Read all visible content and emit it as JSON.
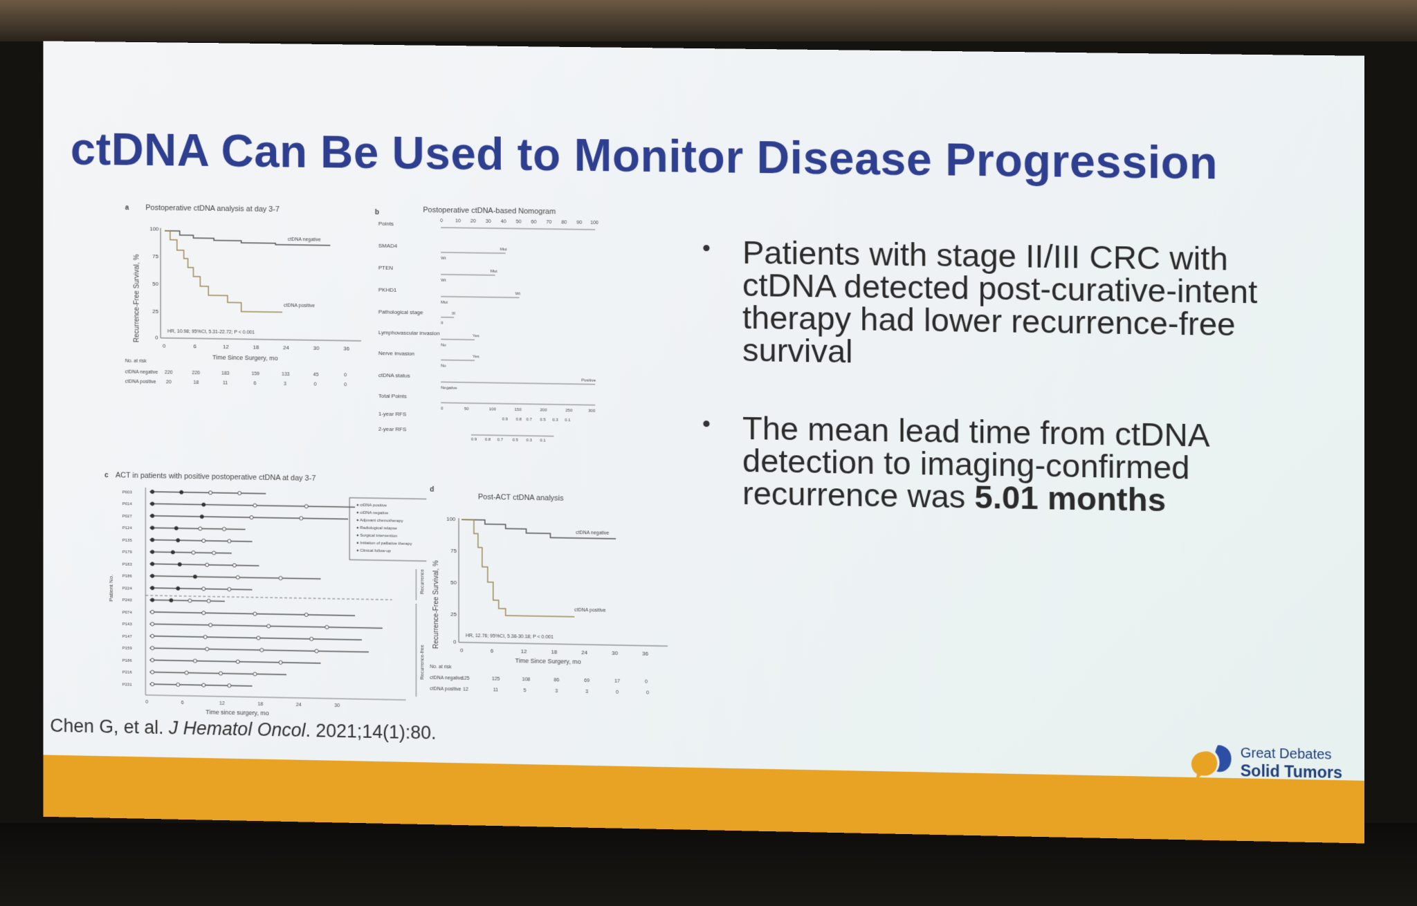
{
  "slide": {
    "title": "ctDNA Can Be Used to Monitor Disease Progression",
    "bullets": [
      {
        "text": "Patients with stage II/III CRC with ctDNA detected post-curative-intent therapy had lower recurrence-free survival"
      },
      {
        "text_before": "The mean lead time from ctDNA detection to imaging-confirmed recurrence was ",
        "text_bold": "5.01 months"
      }
    ],
    "citation": {
      "authors": "Chen G, et al. ",
      "journal": "J Hematol Oncol",
      "rest": ". 2021;14(1):80."
    },
    "logo": {
      "line1": "Great Debates",
      "line2": "Solid Tumors",
      "colors": {
        "orange": "#e9a324",
        "blue": "#2d4fa3"
      }
    },
    "colors": {
      "title": "#2f3f8f",
      "band": "#e9a324"
    }
  },
  "panel_a": {
    "letter": "a",
    "title": "Postoperative ctDNA analysis at day 3-7",
    "ylabel": "Recurrence-Free Survival, %",
    "xlabel": "Time Since Surgery, mo",
    "yticks": [
      "100",
      "75",
      "50",
      "25",
      "0"
    ],
    "xticks": [
      "0",
      "6",
      "12",
      "18",
      "24",
      "30",
      "36"
    ],
    "neg_label": "ctDNA negative",
    "pos_label": "ctDNA positive",
    "hr": "HR, 10.98; 95%CI, 5.31-22.72; P < 0.001",
    "risk_title": "No. at risk",
    "risk_rows": [
      {
        "label": "ctDNA negative",
        "values": [
          "220",
          "220",
          "183",
          "159",
          "133",
          "45",
          "0"
        ]
      },
      {
        "label": "ctDNA positive",
        "values": [
          "20",
          "18",
          "11",
          "6",
          "3",
          "0",
          "0"
        ]
      }
    ]
  },
  "panel_b": {
    "letter": "b",
    "title": "Postoperative ctDNA-based Nomogram",
    "points_ticks": [
      "0",
      "10",
      "20",
      "30",
      "40",
      "50",
      "60",
      "70",
      "80",
      "90",
      "100"
    ],
    "rows": [
      {
        "label": "Points",
        "left": "",
        "right": ""
      },
      {
        "label": "SMAD4",
        "left": "Wt",
        "right": "Mut"
      },
      {
        "label": "PTEN",
        "left": "Wt",
        "right": "Mut"
      },
      {
        "label": "PKHD1",
        "left": "Mut",
        "right": "Wt"
      },
      {
        "label": "Pathological stage",
        "left": "II",
        "right": "III"
      },
      {
        "label": "Lymphovascular invasion",
        "left": "No",
        "right": "Yes"
      },
      {
        "label": "Nerve invasion",
        "left": "No",
        "right": "Yes"
      },
      {
        "label": "ctDNA status",
        "left": "Negative",
        "right": "Positive"
      },
      {
        "label": "Total Points",
        "left": "",
        "right": ""
      },
      {
        "label": "1-year RFS",
        "left": "",
        "right": ""
      },
      {
        "label": "2-year RFS",
        "left": "",
        "right": ""
      }
    ],
    "total_ticks": [
      "0",
      "50",
      "100",
      "150",
      "200",
      "250",
      "300"
    ],
    "rfs1_ticks": [
      "0.9",
      "0.8",
      "0.7",
      "0.5",
      "0.3",
      "0.1"
    ],
    "rfs2_ticks": [
      "0.9",
      "0.8",
      "0.7",
      "0.5",
      "0.3",
      "0.1"
    ]
  },
  "panel_c": {
    "letter": "c",
    "title": "ACT in patients with positive postoperative ctDNA at day 3-7",
    "ylabel": "Patient No.",
    "xlabel": "Time since surgery, mo",
    "xticks": [
      "0",
      "6",
      "12",
      "18",
      "24",
      "30"
    ],
    "patients": [
      "P003",
      "P014",
      "P027",
      "P124",
      "P135",
      "P179",
      "P183",
      "P186",
      "P224",
      "P240",
      "P074",
      "P143",
      "P147",
      "P159",
      "P186",
      "P216",
      "P231"
    ],
    "legend": [
      "ctDNA positive",
      "ctDNA negative",
      "Adjuvant chemotherapy",
      "Radiological relapse",
      "Surgical intervention",
      "Initiation of palliative therapy",
      "Clinical follow-up"
    ],
    "group_top": "Recurrence",
    "group_bottom": "Recurrence-free"
  },
  "panel_d": {
    "letter": "d",
    "title": "Post-ACT ctDNA analysis",
    "ylabel": "Recurrence-Free Survival, %",
    "xlabel": "Time Since Surgery, mo",
    "yticks": [
      "100",
      "75",
      "50",
      "25",
      "0"
    ],
    "xticks": [
      "0",
      "6",
      "12",
      "18",
      "24",
      "30",
      "36"
    ],
    "neg_label": "ctDNA negative",
    "pos_label": "ctDNA positive",
    "hr": "HR, 12.76; 95%CI, 5.38-30.18; P < 0.001",
    "risk_title": "No. at risk",
    "risk_rows": [
      {
        "label": "ctDNA negative",
        "values": [
          "125",
          "125",
          "108",
          "86",
          "69",
          "17",
          "0"
        ]
      },
      {
        "label": "ctDNA positive",
        "values": [
          "12",
          "11",
          "5",
          "3",
          "3",
          "0",
          "0"
        ]
      }
    ]
  }
}
